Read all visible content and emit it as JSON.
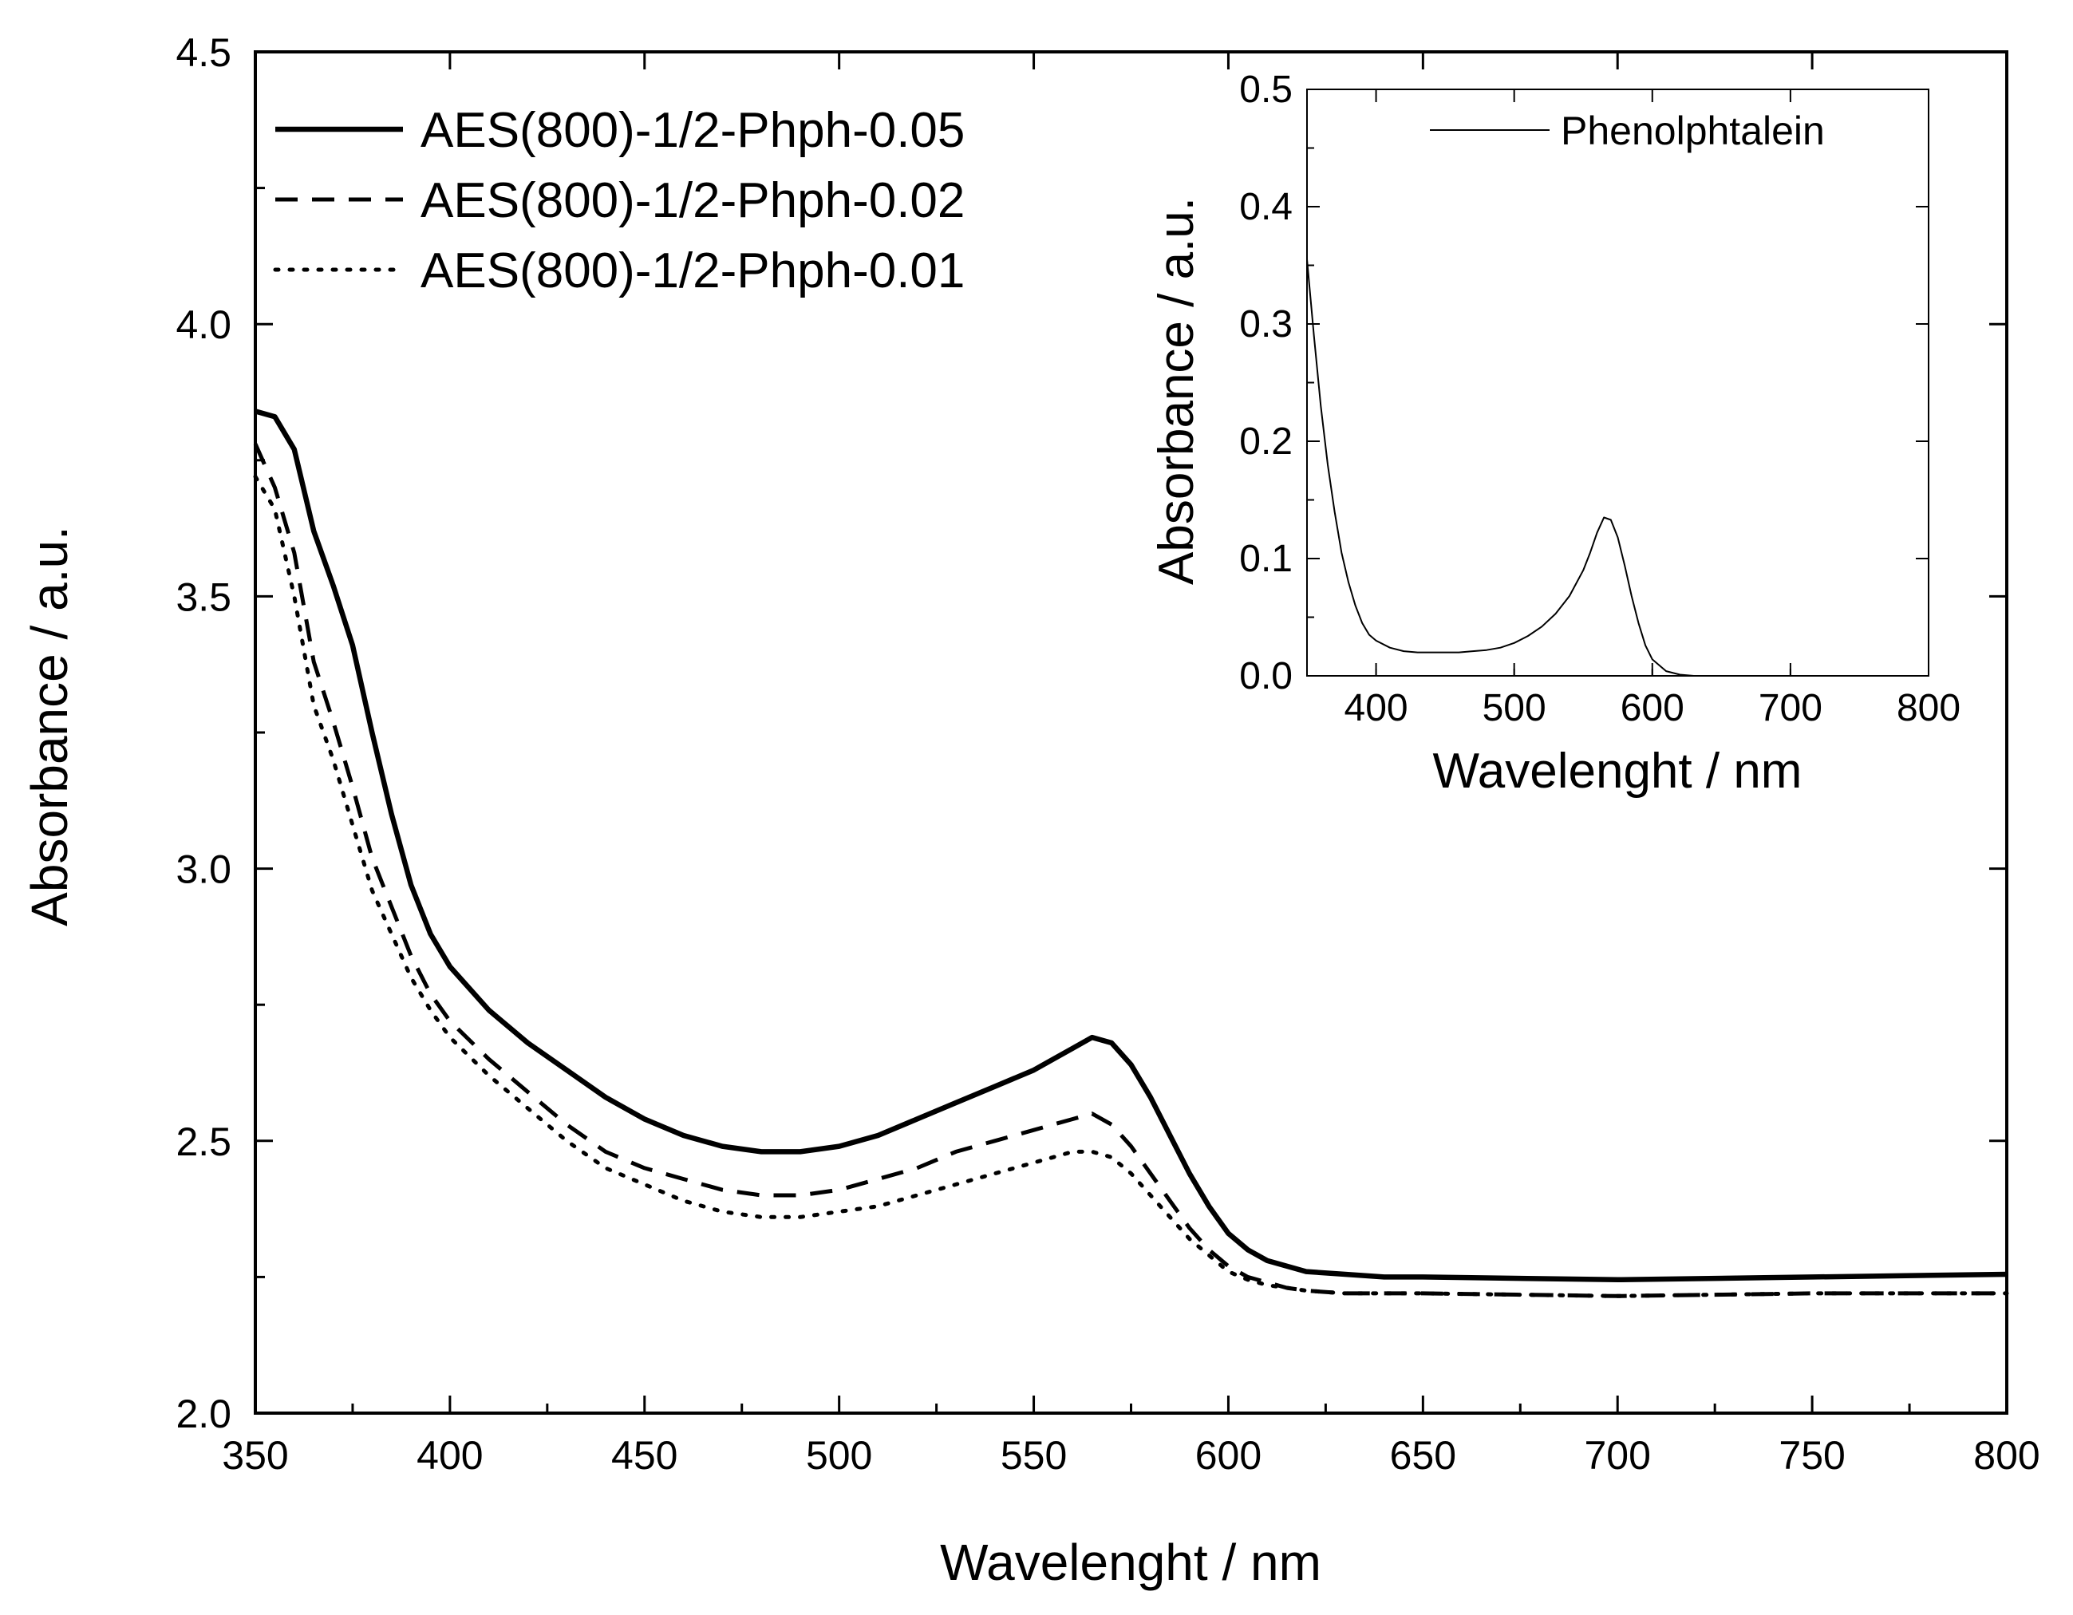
{
  "chart_data": [
    {
      "type": "line",
      "xlabel": "Wavelenght / nm",
      "ylabel": "Absorbance / a.u.",
      "xlim": [
        350,
        800
      ],
      "ylim": [
        2.0,
        4.5
      ],
      "xticks": [
        "350",
        "400",
        "450",
        "500",
        "550",
        "600",
        "650",
        "700",
        "750",
        "800"
      ],
      "yticks": [
        "2.0",
        "2.5",
        "3.0",
        "3.5",
        "4.0",
        "4.5"
      ],
      "legend_position": "top-left",
      "series": [
        {
          "name": "AES(800)-1/2-Phph-0.05",
          "style": "solid",
          "x": [
            350,
            355,
            360,
            365,
            370,
            375,
            380,
            385,
            390,
            395,
            400,
            410,
            420,
            430,
            440,
            450,
            460,
            470,
            480,
            490,
            500,
            510,
            520,
            530,
            540,
            550,
            555,
            560,
            565,
            570,
            575,
            580,
            585,
            590,
            595,
            600,
            605,
            610,
            615,
            620,
            630,
            640,
            650,
            700,
            750,
            800
          ],
          "y": [
            3.84,
            3.83,
            3.77,
            3.62,
            3.52,
            3.41,
            3.25,
            3.1,
            2.97,
            2.88,
            2.82,
            2.74,
            2.68,
            2.63,
            2.58,
            2.54,
            2.51,
            2.49,
            2.48,
            2.48,
            2.49,
            2.51,
            2.54,
            2.57,
            2.6,
            2.63,
            2.65,
            2.67,
            2.69,
            2.68,
            2.64,
            2.58,
            2.51,
            2.44,
            2.38,
            2.33,
            2.3,
            2.28,
            2.27,
            2.26,
            2.255,
            2.25,
            2.25,
            2.245,
            2.25,
            2.255
          ]
        },
        {
          "name": "AES(800)-1/2-Phph-0.02",
          "style": "dashed",
          "x": [
            350,
            355,
            360,
            365,
            370,
            375,
            380,
            385,
            390,
            395,
            400,
            410,
            420,
            430,
            440,
            450,
            460,
            470,
            480,
            490,
            500,
            510,
            520,
            530,
            540,
            550,
            555,
            560,
            565,
            570,
            575,
            580,
            585,
            590,
            595,
            600,
            605,
            610,
            615,
            620,
            630,
            640,
            650,
            700,
            750,
            800
          ],
          "y": [
            3.78,
            3.7,
            3.58,
            3.38,
            3.27,
            3.15,
            3.02,
            2.93,
            2.84,
            2.77,
            2.72,
            2.65,
            2.59,
            2.53,
            2.48,
            2.45,
            2.43,
            2.41,
            2.4,
            2.4,
            2.41,
            2.43,
            2.45,
            2.48,
            2.5,
            2.52,
            2.53,
            2.54,
            2.55,
            2.53,
            2.49,
            2.44,
            2.39,
            2.34,
            2.3,
            2.27,
            2.25,
            2.24,
            2.23,
            2.225,
            2.22,
            2.22,
            2.22,
            2.215,
            2.22,
            2.22
          ]
        },
        {
          "name": "AES(800)-1/2-Phph-0.01",
          "style": "dotted",
          "x": [
            350,
            355,
            360,
            365,
            370,
            375,
            380,
            385,
            390,
            395,
            400,
            410,
            420,
            430,
            440,
            450,
            460,
            470,
            480,
            490,
            500,
            510,
            520,
            530,
            540,
            550,
            555,
            560,
            565,
            570,
            575,
            580,
            585,
            590,
            595,
            600,
            605,
            610,
            615,
            620,
            630,
            640,
            650,
            700,
            750,
            800
          ],
          "y": [
            3.72,
            3.66,
            3.5,
            3.3,
            3.2,
            3.08,
            2.96,
            2.88,
            2.8,
            2.74,
            2.69,
            2.62,
            2.56,
            2.5,
            2.45,
            2.42,
            2.39,
            2.37,
            2.36,
            2.36,
            2.37,
            2.38,
            2.4,
            2.42,
            2.44,
            2.46,
            2.47,
            2.48,
            2.48,
            2.47,
            2.44,
            2.4,
            2.36,
            2.32,
            2.29,
            2.26,
            2.245,
            2.235,
            2.23,
            2.225,
            2.22,
            2.22,
            2.22,
            2.215,
            2.22,
            2.22
          ]
        }
      ]
    },
    {
      "type": "line",
      "inset": true,
      "xlabel": "Wavelenght / nm",
      "ylabel": "Absorbance / a.u.",
      "xlim": [
        350,
        800
      ],
      "ylim": [
        0.0,
        0.5
      ],
      "xticks": [
        "400",
        "500",
        "600",
        "700",
        "800"
      ],
      "yticks": [
        "0.0",
        "0.1",
        "0.2",
        "0.3",
        "0.4",
        "0.5"
      ],
      "legend_position": "top-right",
      "series": [
        {
          "name": "Phenolphtalein",
          "style": "solid-thin",
          "x": [
            350,
            355,
            360,
            365,
            370,
            375,
            380,
            385,
            390,
            395,
            400,
            410,
            420,
            430,
            440,
            450,
            460,
            470,
            480,
            490,
            500,
            510,
            520,
            530,
            540,
            550,
            555,
            560,
            565,
            570,
            575,
            580,
            585,
            590,
            595,
            600,
            610,
            620,
            630,
            650,
            700,
            800
          ],
          "y": [
            0.355,
            0.29,
            0.23,
            0.18,
            0.14,
            0.105,
            0.08,
            0.06,
            0.045,
            0.035,
            0.03,
            0.024,
            0.021,
            0.02,
            0.02,
            0.02,
            0.02,
            0.021,
            0.022,
            0.024,
            0.028,
            0.034,
            0.042,
            0.053,
            0.068,
            0.09,
            0.105,
            0.122,
            0.135,
            0.133,
            0.118,
            0.094,
            0.068,
            0.045,
            0.026,
            0.014,
            0.004,
            0.001,
            0.0,
            0.0,
            0.0,
            0.0
          ]
        }
      ]
    }
  ]
}
